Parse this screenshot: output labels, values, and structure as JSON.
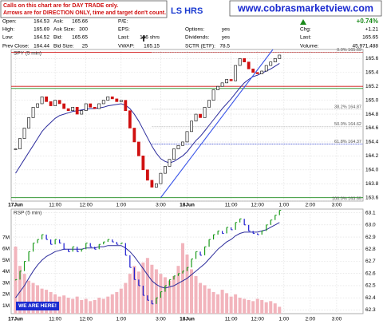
{
  "notice": [
    "Calls on this chart are for DAY TRADE only.",
    "Arrows are for DIRECTION ONLY, time and target don't count."
  ],
  "header_fragment": "LS HRS",
  "site": "www.cobrasmarketview.com",
  "quote": {
    "columns": [
      [
        {
          "label": "Open:",
          "value": "164.53"
        },
        {
          "label": "High:",
          "value": "165.69"
        },
        {
          "label": "Low:",
          "value": "164.52"
        },
        {
          "label": "Prev Close:",
          "value": "164.44"
        }
      ],
      [
        {
          "label": "Ask:",
          "value": "165.66"
        },
        {
          "label": "Ask Size:",
          "value": "300"
        },
        {
          "label": "Bid:",
          "value": "165.65"
        },
        {
          "label": "Bid Size:",
          "value": "25"
        }
      ],
      [
        {
          "label": "P/E:"
        },
        {
          "label": "EPS:"
        },
        {
          "label": "Last:",
          "value": "136 shrs"
        },
        {
          "label": "VWAP:",
          "value": "165.15"
        }
      ],
      [
        {
          "label": "Options:",
          "value": "yes"
        },
        {
          "label": "Dividends:",
          "value": "yes"
        },
        {
          "label": "SCTR (ETF):",
          "value": "78.5"
        }
      ],
      [
        {
          "label": "Chg:",
          "value": "+1.21"
        },
        {
          "label": "Last:",
          "value": "165.65"
        },
        {
          "label": "Volume:",
          "value": "45,971,488"
        }
      ]
    ],
    "change_pct": "+0.74%",
    "change_color": "#1a8a1a"
  },
  "chart_data": [
    {
      "type": "candlestick",
      "title": "SPY (5 min)",
      "up_color": "#ffffff",
      "down_color": "#d01010",
      "grid": true,
      "xlim": [
        -1,
        79
      ],
      "xticks": [
        {
          "value": 0,
          "label": "17Jun"
        },
        {
          "value": 9,
          "label": "11:00"
        },
        {
          "value": 16,
          "label": "12:00"
        },
        {
          "value": 24,
          "label": "1:00"
        },
        {
          "value": 33,
          "label": "3:00"
        },
        {
          "value": 39,
          "label": "18Jun"
        },
        {
          "value": 49,
          "label": "11:00"
        },
        {
          "value": 55,
          "label": "12:00"
        },
        {
          "value": 61,
          "label": "1:00"
        },
        {
          "value": 67,
          "label": "2:00"
        },
        {
          "value": 73,
          "label": "3:00"
        }
      ],
      "ylim": [
        163.55,
        165.73
      ],
      "yticks": [
        165.6,
        165.4,
        165.2,
        {
          "value": 165,
          "label": "165.0"
        },
        164.8,
        164.6,
        164.4,
        164.2,
        {
          "value": 164,
          "label": "164.0"
        },
        163.8,
        163.6
      ],
      "values": [
        164.3,
        164.45,
        164.6,
        164.75,
        164.9,
        164.95,
        165.05,
        164.98,
        164.92,
        165.0,
        164.95,
        164.88,
        164.85,
        164.9,
        164.8,
        164.85,
        164.95,
        164.9,
        164.88,
        164.95,
        165.0,
        165.05,
        165.02,
        164.98,
        165.0,
        164.85,
        164.6,
        164.4,
        164.2,
        164.0,
        163.85,
        163.75,
        163.8,
        163.95,
        164.05,
        164.15,
        164.3,
        164.35,
        164.4,
        164.55,
        164.7,
        164.8,
        164.75,
        164.9,
        165.0,
        165.15,
        165.2,
        165.25,
        165.3,
        165.28,
        165.5,
        165.6,
        165.55,
        165.45,
        165.4,
        165.38,
        165.42,
        165.5,
        165.55,
        165.6,
        165.65
      ],
      "overlays": [
        {
          "color": "#2c2c9c",
          "values": [
            163.95,
            164.05,
            164.15,
            164.25,
            164.35,
            164.45,
            164.55,
            164.62,
            164.68,
            164.74,
            164.78,
            164.8,
            164.82,
            164.84,
            164.85,
            164.86,
            164.87,
            164.88,
            164.88,
            164.89,
            164.9,
            164.92,
            164.93,
            164.94,
            164.95,
            164.93,
            164.88,
            164.8,
            164.7,
            164.58,
            164.46,
            164.34,
            164.24,
            164.16,
            164.12,
            164.1,
            164.12,
            164.16,
            164.2,
            164.26,
            164.34,
            164.42,
            164.48,
            164.56,
            164.64,
            164.72,
            164.8,
            164.88,
            164.95,
            165.02,
            165.1,
            165.18,
            165.25,
            165.3,
            165.34,
            165.36,
            165.39,
            165.42,
            165.45,
            165.49,
            165.53
          ]
        }
      ],
      "trendline": {
        "color": "#3a55e8",
        "x": [
          33,
          58.5
        ],
        "y": [
          163.6,
          165.73
        ]
      },
      "hlines": [
        {
          "value": 165.69,
          "color": "#d01010"
        },
        {
          "value": 165.2,
          "color": "#d01010"
        },
        {
          "value": 165.17,
          "color": "#1a8a1a"
        },
        {
          "value": 163.6,
          "color": "#1a8a1a"
        }
      ],
      "fib_levels": [
        {
          "value": 165.69,
          "label": "0.0% 165.69",
          "color": "#bbbbbb"
        },
        {
          "value": 164.87,
          "label": "38.2% 164.87",
          "color": "#bbbbbb"
        },
        {
          "value": 164.62,
          "label": "50.0% 164.62",
          "color": "#bbbbbb"
        },
        {
          "value": 164.37,
          "label": "61.8% 164.37",
          "color": "#3344cc"
        },
        {
          "value": 163.55,
          "label": "100.0% 163.55",
          "color": "#bbbbbb"
        }
      ]
    },
    {
      "type": "ohlc",
      "title": "RSP (5 min)",
      "up_color": "#1a9a1a",
      "down_color": "#1a1ad0",
      "grid": true,
      "xlim": [
        -1,
        79
      ],
      "xticks": [
        {
          "value": 0,
          "label": "17Jun"
        },
        {
          "value": 9,
          "label": "11:00"
        },
        {
          "value": 16,
          "label": "12:00"
        },
        {
          "value": 24,
          "label": "1:00"
        },
        {
          "value": 33,
          "label": "3:00"
        },
        {
          "value": 39,
          "label": "18Jun"
        },
        {
          "value": 49,
          "label": "11:00"
        },
        {
          "value": 55,
          "label": "12:00"
        },
        {
          "value": 61,
          "label": "1:00"
        },
        {
          "value": 67,
          "label": "2:00"
        },
        {
          "value": 73,
          "label": "3:00"
        }
      ],
      "ylim": [
        62.27,
        63.13
      ],
      "yticks": [
        63.1,
        {
          "value": 63,
          "label": "63.0"
        },
        62.9,
        62.8,
        62.7,
        62.6,
        62.5,
        62.4,
        62.3
      ],
      "values": [
        62.55,
        62.62,
        62.7,
        62.78,
        62.85,
        62.88,
        62.92,
        62.88,
        62.84,
        62.88,
        62.85,
        62.8,
        62.78,
        62.82,
        62.78,
        62.8,
        62.85,
        62.82,
        62.8,
        62.84,
        62.86,
        62.88,
        62.86,
        62.84,
        62.85,
        62.75,
        62.65,
        62.55,
        62.5,
        62.42,
        62.38,
        62.35,
        62.4,
        62.45,
        62.5,
        62.55,
        62.58,
        62.6,
        62.62,
        62.65,
        62.72,
        62.78,
        62.75,
        62.82,
        62.88,
        62.92,
        62.95,
        62.93,
        62.98,
        62.96,
        63.02,
        63.05,
        63.0,
        62.95,
        62.93,
        62.92,
        62.95,
        63.0,
        63.04,
        63.08,
        63.12
      ],
      "overlays": [
        {
          "color": "#2c2c9c",
          "values": [
            62.4,
            62.45,
            62.5,
            62.56,
            62.62,
            62.67,
            62.71,
            62.74,
            62.76,
            62.78,
            62.79,
            62.8,
            62.8,
            62.8,
            62.8,
            62.8,
            62.81,
            62.81,
            62.81,
            62.82,
            62.82,
            62.83,
            62.83,
            62.83,
            62.83,
            62.81,
            62.78,
            62.74,
            62.69,
            62.64,
            62.59,
            62.54,
            62.51,
            62.49,
            62.48,
            62.49,
            62.5,
            62.52,
            62.54,
            62.56,
            62.59,
            62.62,
            62.65,
            62.68,
            62.72,
            62.76,
            62.8,
            62.83,
            62.86,
            62.88,
            62.91,
            62.93,
            62.94,
            62.94,
            62.94,
            62.94,
            62.95,
            62.96,
            62.98,
            63.0,
            63.02
          ]
        }
      ],
      "volume": {
        "color": "#f2b4bc",
        "ylim": [
          0.3,
          9.5
        ],
        "yticks": [
          {
            "value": 7,
            "label": "7M"
          },
          {
            "value": 6,
            "label": "6M"
          },
          {
            "value": 5,
            "label": "5M"
          },
          {
            "value": 4,
            "label": "4M"
          },
          {
            "value": 3,
            "label": "3M"
          },
          {
            "value": 2,
            "label": "2M"
          },
          {
            "value": 1,
            "label": "1M"
          }
        ],
        "values": [
          6.2,
          4.5,
          3.8,
          3.2,
          3.0,
          2.8,
          2.5,
          2.4,
          2.2,
          2.0,
          1.8,
          1.9,
          1.7,
          1.6,
          1.8,
          1.5,
          1.6,
          1.4,
          1.5,
          1.7,
          1.6,
          1.8,
          2.0,
          2.2,
          2.5,
          3.0,
          3.8,
          4.5,
          4.0,
          4.8,
          5.2,
          4.6,
          4.2,
          3.8,
          3.5,
          3.2,
          3.6,
          4.5,
          6.5,
          5.5,
          4.2,
          3.6,
          3.0,
          2.8,
          2.5,
          2.2,
          2.0,
          2.4,
          2.1,
          1.8,
          2.0,
          1.7,
          1.6,
          1.5,
          1.4,
          1.6,
          1.5,
          1.3,
          1.4,
          1.2,
          0.9
        ]
      },
      "callout": "WE ARE HERE!"
    }
  ]
}
